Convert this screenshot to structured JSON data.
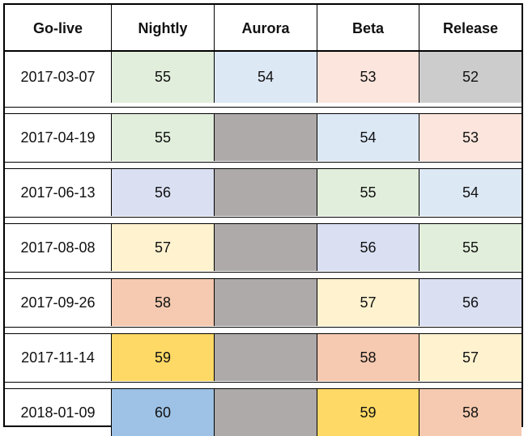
{
  "headers": [
    "Go-live",
    "Nightly",
    "Aurora",
    "Beta",
    "Release"
  ],
  "colors": {
    "green": "#e1eedb",
    "blue_light": "#dde8f5",
    "peach": "#fbe5dc",
    "gray": "#cccccc",
    "dark_gray": "#aeaaaa",
    "lavender": "#dae0f2",
    "cream": "#fef2cf",
    "salmon": "#f6cab0",
    "yellow": "#fed965",
    "blue": "#9dc2e5"
  },
  "rows": [
    {
      "date": "2017-03-07",
      "nightly": "55",
      "aurora": "54",
      "beta": "53",
      "release": "52",
      "fill": [
        "green",
        "blue_light",
        "peach",
        "gray"
      ]
    },
    {
      "date": "2017-04-19",
      "nightly": "55",
      "aurora": "",
      "beta": "54",
      "release": "53",
      "fill": [
        "green",
        "dark_gray",
        "blue_light",
        "peach"
      ]
    },
    {
      "date": "2017-06-13",
      "nightly": "56",
      "aurora": "",
      "beta": "55",
      "release": "54",
      "fill": [
        "lavender",
        "dark_gray",
        "green",
        "blue_light"
      ]
    },
    {
      "date": "2017-08-08",
      "nightly": "57",
      "aurora": "",
      "beta": "56",
      "release": "55",
      "fill": [
        "cream",
        "dark_gray",
        "lavender",
        "green"
      ]
    },
    {
      "date": "2017-09-26",
      "nightly": "58",
      "aurora": "",
      "beta": "57",
      "release": "56",
      "fill": [
        "salmon",
        "dark_gray",
        "cream",
        "lavender"
      ]
    },
    {
      "date": "2017-11-14",
      "nightly": "59",
      "aurora": "",
      "beta": "58",
      "release": "57",
      "fill": [
        "yellow",
        "dark_gray",
        "salmon",
        "cream"
      ]
    },
    {
      "date": "2018-01-09",
      "nightly": "60",
      "aurora": "",
      "beta": "59",
      "release": "58",
      "fill": [
        "blue",
        "dark_gray",
        "yellow",
        "salmon"
      ]
    }
  ]
}
